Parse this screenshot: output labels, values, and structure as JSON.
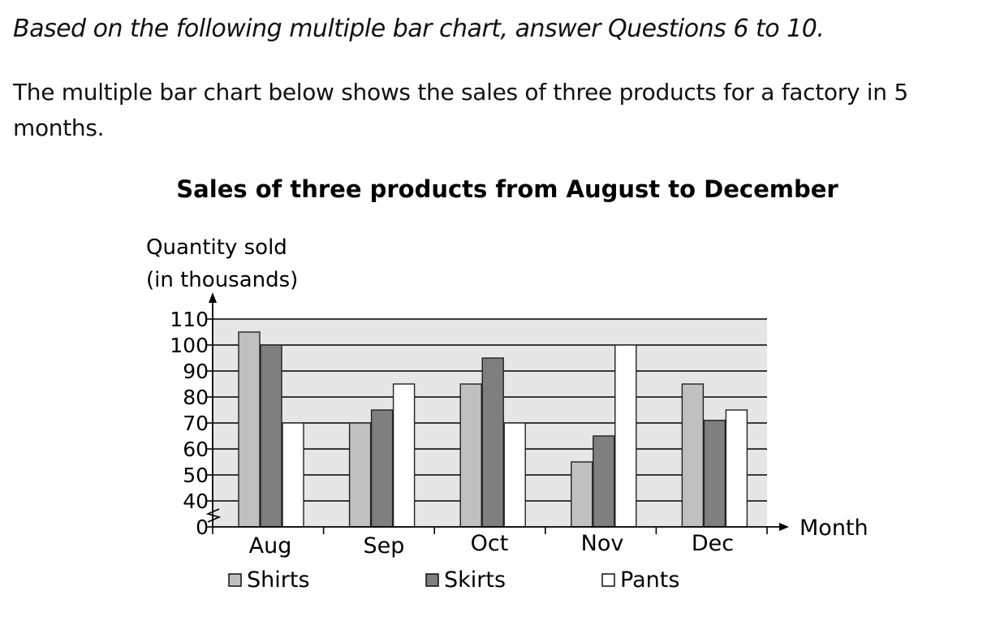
{
  "instruction": "Based on the following multiple bar chart, answer Questions 6 to 10.",
  "intro": "The multiple bar chart below shows the sales of three products for a factory in 5 months.",
  "colors": {
    "background": "#e6e6e6",
    "shirts": "#c0c0c0",
    "skirts": "#7f7f7f",
    "pants": "#ffffff",
    "outline": "#222222"
  },
  "chart_data": {
    "type": "bar",
    "title": "Sales of three products from August to December",
    "ylabel": [
      "Quantity sold",
      "(in thousands)"
    ],
    "xlabel": "Month",
    "categories": [
      "Aug",
      "Sep",
      "Oct",
      "Nov",
      "Dec"
    ],
    "series": [
      {
        "name": "Shirts",
        "values": [
          105,
          70,
          85,
          55,
          85
        ]
      },
      {
        "name": "Skirts",
        "values": [
          100,
          75,
          95,
          65,
          71
        ]
      },
      {
        "name": "Pants",
        "values": [
          70,
          85,
          70,
          100,
          75
        ]
      }
    ],
    "yticks": [
      0,
      40,
      50,
      60,
      70,
      80,
      90,
      100,
      110
    ],
    "ylim": [
      0,
      110
    ],
    "axis_break": "between 0 and 40",
    "grid": true,
    "legend": "bottom"
  }
}
